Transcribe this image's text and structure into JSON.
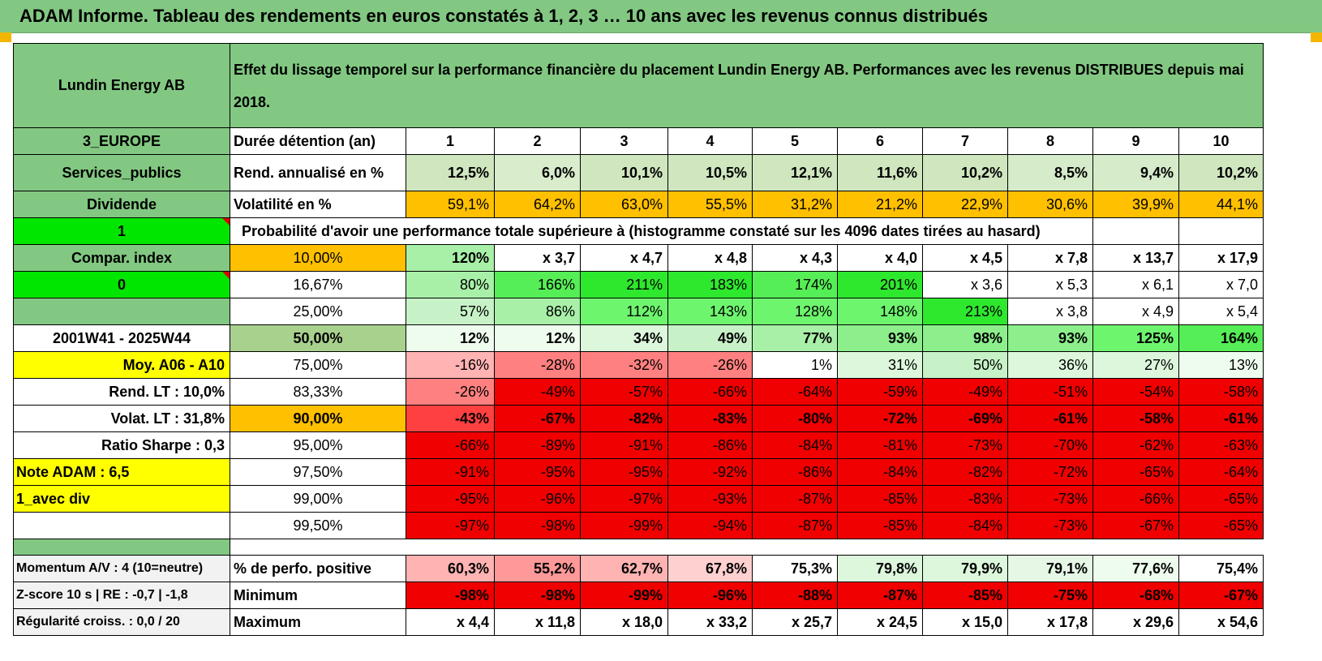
{
  "banner": {
    "title": "ADAM Informe. Tableau des rendements en euros constatés à 1, 2, 3 … 10 ans avec les revenus connus distribués"
  },
  "header": {
    "asset_name": "Lundin Energy AB",
    "description": "Effet du lissage temporel sur la performance financière du placement Lundin Energy AB. Performances avec les revenus DISTRIBUES depuis mai 2018."
  },
  "colors": {
    "green_header": "#82c882",
    "bright_green": "#00e600",
    "yellow": "#ffff00",
    "orange": "#ffc000",
    "red_text": "#e00000"
  },
  "stats": {
    "years_label": "Durée détention (an)",
    "years": [
      "1",
      "2",
      "3",
      "4",
      "5",
      "6",
      "7",
      "8",
      "9",
      "10"
    ],
    "rows": [
      {
        "side": "3_EUROPE",
        "label": "Durée détention (an)"
      },
      {
        "side": "Services_publics",
        "label": "Rend. annualisé en %",
        "values": [
          "12,5%",
          "6,0%",
          "10,1%",
          "10,5%",
          "12,1%",
          "11,6%",
          "10,2%",
          "8,5%",
          "9,4%",
          "10,2%"
        ]
      },
      {
        "side": "Dividende",
        "label": "Volatilité en %",
        "values": [
          "59,1%",
          "64,2%",
          "63,0%",
          "55,5%",
          "31,2%",
          "21,2%",
          "22,9%",
          "30,6%",
          "39,9%",
          "44,1%"
        ]
      }
    ]
  },
  "probability": {
    "flag": "1",
    "title": "Probabilité d'avoir une performance totale supérieure à (histogramme constaté sur les 4096 dates tirées au hasard)",
    "rows": [
      {
        "side": "Compar. index",
        "level": "10,00%",
        "values": [
          "120%",
          "x 3,7",
          "x 4,7",
          "x 4,8",
          "x 4,3",
          "x 4,0",
          "x 4,5",
          "x 7,8",
          "x 13,7",
          "x 17,9"
        ]
      },
      {
        "side": "0",
        "level": "16,67%",
        "values": [
          "80%",
          "166%",
          "211%",
          "183%",
          "174%",
          "201%",
          "x 3,6",
          "x 5,3",
          "x 6,1",
          "x 7,0"
        ]
      },
      {
        "side": "",
        "level": "25,00%",
        "values": [
          "57%",
          "86%",
          "112%",
          "143%",
          "128%",
          "148%",
          "213%",
          "x 3,8",
          "x 4,9",
          "x 5,4"
        ]
      },
      {
        "side": "2001W41 - 2025W44",
        "level": "50,00%",
        "values": [
          "12%",
          "12%",
          "34%",
          "49%",
          "77%",
          "93%",
          "98%",
          "93%",
          "125%",
          "164%"
        ]
      },
      {
        "side": "Moy. A06 - A10",
        "level": "75,00%",
        "values": [
          "-16%",
          "-28%",
          "-32%",
          "-26%",
          "1%",
          "31%",
          "50%",
          "36%",
          "27%",
          "13%"
        ]
      },
      {
        "side": "Rend. LT :    10,0%",
        "level": "83,33%",
        "values": [
          "-26%",
          "-49%",
          "-57%",
          "-66%",
          "-64%",
          "-59%",
          "-49%",
          "-51%",
          "-54%",
          "-58%"
        ]
      },
      {
        "side": "Volat. LT :    31,8%",
        "level": "90,00%",
        "values": [
          "-43%",
          "-67%",
          "-82%",
          "-83%",
          "-80%",
          "-72%",
          "-69%",
          "-61%",
          "-58%",
          "-61%"
        ]
      },
      {
        "side": "Ratio Sharpe :    0,3",
        "level": "95,00%",
        "values": [
          "-66%",
          "-89%",
          "-91%",
          "-86%",
          "-84%",
          "-81%",
          "-73%",
          "-70%",
          "-62%",
          "-63%"
        ]
      },
      {
        "side": "Note ADAM : 6,5",
        "level": "97,50%",
        "values": [
          "-91%",
          "-95%",
          "-95%",
          "-92%",
          "-86%",
          "-84%",
          "-82%",
          "-72%",
          "-65%",
          "-64%"
        ]
      },
      {
        "side": "1_avec div",
        "level": "99,00%",
        "values": [
          "-95%",
          "-96%",
          "-97%",
          "-93%",
          "-87%",
          "-85%",
          "-83%",
          "-73%",
          "-66%",
          "-65%"
        ]
      },
      {
        "side": "",
        "level": "99,50%",
        "values": [
          "-97%",
          "-98%",
          "-99%",
          "-94%",
          "-87%",
          "-85%",
          "-84%",
          "-73%",
          "-67%",
          "-65%"
        ]
      }
    ]
  },
  "summary": {
    "rows": [
      {
        "side": "Momentum A/V : 4 (10=neutre)",
        "label": "% de perfo. positive",
        "values": [
          "60,3%",
          "55,2%",
          "62,7%",
          "67,8%",
          "75,3%",
          "79,8%",
          "79,9%",
          "79,1%",
          "77,6%",
          "75,4%"
        ]
      },
      {
        "side": "Z-score 10 s | RE : -0,7 | -1,8",
        "label": "Minimum",
        "values": [
          "-98%",
          "-98%",
          "-99%",
          "-96%",
          "-88%",
          "-87%",
          "-85%",
          "-75%",
          "-68%",
          "-67%"
        ]
      },
      {
        "side": "Régularité croiss. : 0,0 / 20",
        "label": "Maximum",
        "values": [
          "x 4,4",
          "x 11,8",
          "x 18,0",
          "x 33,2",
          "x 25,7",
          "x 24,5",
          "x 15,0",
          "x 17,8",
          "x 29,6",
          "x 54,6"
        ]
      }
    ]
  }
}
